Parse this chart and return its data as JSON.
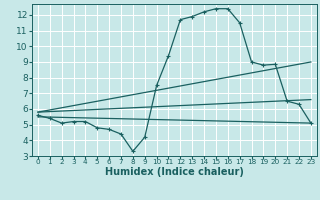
{
  "title": "",
  "xlabel": "Humidex (Indice chaleur)",
  "xlim": [
    -0.5,
    23.5
  ],
  "ylim": [
    3,
    12.7
  ],
  "xticks": [
    0,
    1,
    2,
    3,
    4,
    5,
    6,
    7,
    8,
    9,
    10,
    11,
    12,
    13,
    14,
    15,
    16,
    17,
    18,
    19,
    20,
    21,
    22,
    23
  ],
  "yticks": [
    3,
    4,
    5,
    6,
    7,
    8,
    9,
    10,
    11,
    12
  ],
  "bg_color": "#c8e8e8",
  "line_color": "#1a6060",
  "grid_color": "#ffffff",
  "line1_x": [
    0,
    1,
    2,
    3,
    4,
    5,
    6,
    7,
    8,
    9,
    10,
    11,
    12,
    13,
    14,
    15,
    16,
    17,
    18,
    19,
    20,
    21,
    22,
    23
  ],
  "line1_y": [
    5.6,
    5.4,
    5.1,
    5.2,
    5.2,
    4.8,
    4.7,
    4.4,
    3.3,
    4.2,
    7.5,
    9.4,
    11.7,
    11.9,
    12.2,
    12.4,
    12.4,
    11.5,
    9.0,
    8.8,
    8.85,
    6.5,
    6.3,
    5.1
  ],
  "line2_x": [
    0,
    23
  ],
  "line2_y": [
    5.5,
    5.1
  ],
  "line3_x": [
    0,
    23
  ],
  "line3_y": [
    5.8,
    9.0
  ],
  "line4_x": [
    0,
    23
  ],
  "line4_y": [
    5.8,
    6.6
  ]
}
